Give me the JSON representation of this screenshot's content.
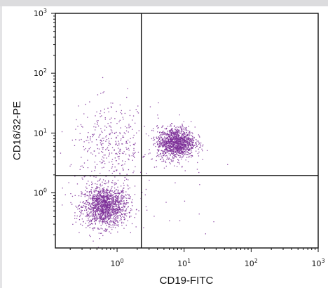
{
  "chart_data": {
    "type": "scatter",
    "title": "",
    "xlabel": "CD19-FITC",
    "ylabel": "CD16/32-PE",
    "x_scale": "log",
    "y_scale": "log",
    "xlim": [
      0.12,
      1000
    ],
    "ylim": [
      0.12,
      1000
    ],
    "x_ticks": [
      {
        "base": "10",
        "exp": "0",
        "value": 1
      },
      {
        "base": "10",
        "exp": "1",
        "value": 10
      },
      {
        "base": "10",
        "exp": "2",
        "value": 100
      },
      {
        "base": "10",
        "exp": "3",
        "value": 1000
      }
    ],
    "y_ticks": [
      {
        "base": "10",
        "exp": "0",
        "value": 1
      },
      {
        "base": "10",
        "exp": "1",
        "value": 10
      },
      {
        "base": "10",
        "exp": "2",
        "value": 100
      },
      {
        "base": "10",
        "exp": "3",
        "value": 1000
      }
    ],
    "quadrant_gates": {
      "x": 2.3,
      "y": 1.95
    },
    "point_color": "#7b2d96",
    "populations": [
      {
        "center_x": 0.65,
        "center_y": 0.6,
        "spread_log_x": 0.17,
        "spread_log_y": 0.17,
        "count": 1500
      },
      {
        "center_x": 7.5,
        "center_y": 7.0,
        "spread_log_x": 0.14,
        "spread_log_y": 0.13,
        "count": 1300
      },
      {
        "center_x": 0.8,
        "center_y": 6.0,
        "spread_log_x": 0.3,
        "spread_log_y": 0.35,
        "count": 380
      },
      {
        "center_x": 7.0,
        "center_y": 0.7,
        "spread_log_x": 0.45,
        "spread_log_y": 0.45,
        "count": 25
      }
    ],
    "grid": false,
    "legend": "none"
  }
}
